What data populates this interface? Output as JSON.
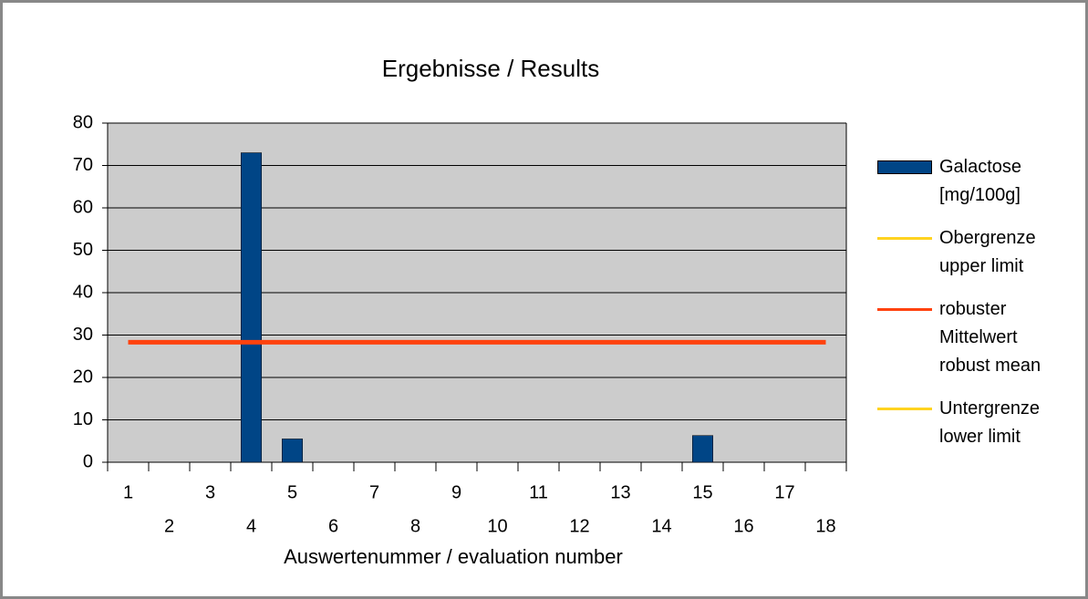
{
  "chart_data": {
    "type": "bar",
    "title": "Ergebnisse / Results",
    "x_label": "Auswertenummer / evaluation number",
    "categories": [
      "1",
      "2",
      "3",
      "4",
      "5",
      "6",
      "7",
      "8",
      "9",
      "10",
      "11",
      "12",
      "13",
      "14",
      "15",
      "16",
      "17",
      "18"
    ],
    "series": [
      {
        "name": "Galactose\n[mg/100g]",
        "type": "bar",
        "color": "#004586",
        "values": [
          null,
          null,
          null,
          73,
          5.5,
          null,
          null,
          null,
          null,
          null,
          null,
          null,
          null,
          null,
          6.3,
          null,
          null,
          null
        ]
      },
      {
        "name": "Obergrenze\nupper limit",
        "type": "line",
        "color": "#ffd320",
        "values": [
          null,
          null,
          null,
          null,
          null,
          null,
          null,
          null,
          null,
          null,
          null,
          null,
          null,
          null,
          null,
          null,
          null,
          null
        ]
      },
      {
        "name": "robuster\nMittelwert\nrobust mean",
        "type": "line",
        "color": "#ff420e",
        "values": [
          28.3,
          28.3,
          28.3,
          28.3,
          28.3,
          28.3,
          28.3,
          28.3,
          28.3,
          28.3,
          28.3,
          28.3,
          28.3,
          28.3,
          28.3,
          28.3,
          28.3,
          28.3
        ]
      },
      {
        "name": "Untergrenze\nlower limit",
        "type": "line",
        "color": "#ffd320",
        "values": [
          null,
          null,
          null,
          null,
          null,
          null,
          null,
          null,
          null,
          null,
          null,
          null,
          null,
          null,
          null,
          null,
          null,
          null
        ]
      }
    ],
    "ylim": [
      0,
      80
    ],
    "yticks": [
      0,
      10,
      20,
      30,
      40,
      50,
      60,
      70,
      80
    ],
    "grid": true,
    "legend": "right"
  }
}
